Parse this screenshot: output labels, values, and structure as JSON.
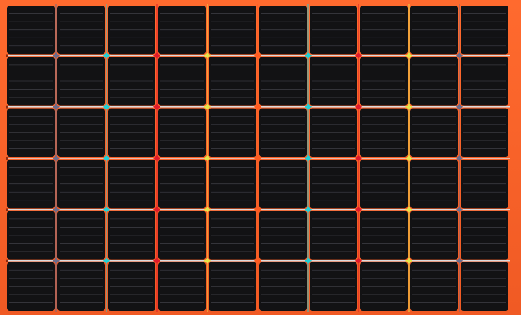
{
  "photo": {
    "subject": "solar-panel",
    "frame_color": "#f4612a",
    "cell_color": "#121214",
    "busbar_color": "#d9d9dc",
    "columns": 10,
    "rows": 6,
    "column_wire_colors": [
      "#6c6b8a",
      "#1fd0d6",
      "#e01a2a",
      "#e6e34a",
      "#ff5b1f",
      "#1fd0d6",
      "#e01a2a",
      "#e6e34a",
      "#6c6b8a"
    ]
  }
}
